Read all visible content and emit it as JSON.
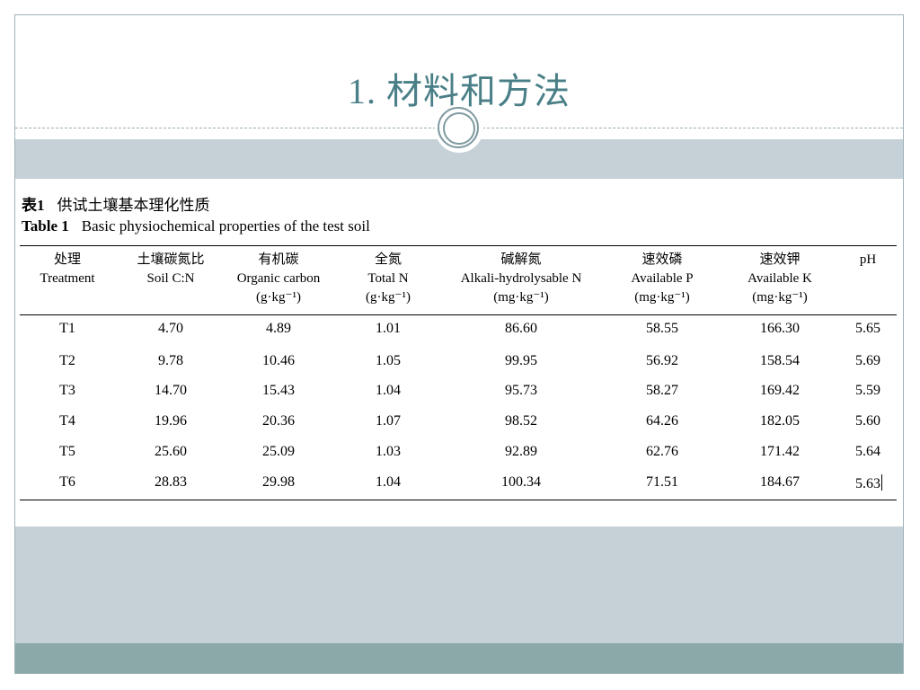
{
  "slide": {
    "title": "1. 材料和方法"
  },
  "table": {
    "caption_cn_label": "表1",
    "caption_cn_text": "供试土壤基本理化性质",
    "caption_en_label": "Table 1",
    "caption_en_text": "Basic physiochemical properties of the test soil",
    "headers": [
      {
        "cn": "处理",
        "en": "Treatment",
        "unit": ""
      },
      {
        "cn": "土壤碳氮比",
        "en": "Soil C:N",
        "unit": ""
      },
      {
        "cn": "有机碳",
        "en": "Organic carbon",
        "unit": "(g·kg⁻¹)"
      },
      {
        "cn": "全氮",
        "en": "Total N",
        "unit": "(g·kg⁻¹)"
      },
      {
        "cn": "碱解氮",
        "en": "Alkali-hydrolysable N",
        "unit": "(mg·kg⁻¹)"
      },
      {
        "cn": "速效磷",
        "en": "Available P",
        "unit": "(mg·kg⁻¹)"
      },
      {
        "cn": "速效钾",
        "en": "Available K",
        "unit": "(mg·kg⁻¹)"
      },
      {
        "cn": "pH",
        "en": "",
        "unit": ""
      }
    ],
    "rows": [
      [
        "T1",
        "4.70",
        "4.89",
        "1.01",
        "86.60",
        "58.55",
        "166.30",
        "5.65"
      ],
      [
        "T2",
        "9.78",
        "10.46",
        "1.05",
        "99.95",
        "56.92",
        "158.54",
        "5.69"
      ],
      [
        "T3",
        "14.70",
        "15.43",
        "1.04",
        "95.73",
        "58.27",
        "169.42",
        "5.59"
      ],
      [
        "T4",
        "19.96",
        "20.36",
        "1.07",
        "98.52",
        "64.26",
        "182.05",
        "5.60"
      ],
      [
        "T5",
        "25.60",
        "25.09",
        "1.03",
        "92.89",
        "62.76",
        "171.42",
        "5.64"
      ],
      [
        "T6",
        "28.83",
        "29.98",
        "1.04",
        "100.34",
        "71.51",
        "184.67",
        "5.63"
      ]
    ]
  }
}
